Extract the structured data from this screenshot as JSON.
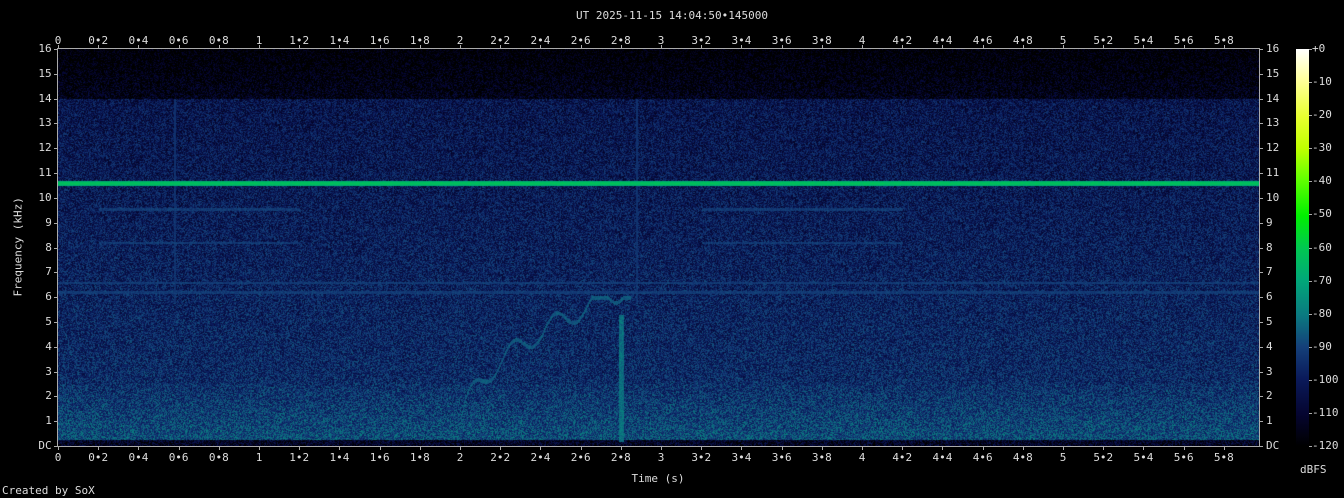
{
  "chart_data": {
    "type": "heatmap",
    "title": "UT 2025-11-15 14:04:50•145000",
    "xlabel": "Time (s)",
    "ylabel": "Frequency (kHz)",
    "xlim": [
      0,
      5.975
    ],
    "ylim": [
      0,
      16
    ],
    "x_ticks": [
      "0",
      "0•2",
      "0•4",
      "0•6",
      "0•8",
      "1",
      "1•2",
      "1•4",
      "1•6",
      "1•8",
      "2",
      "2•2",
      "2•4",
      "2•6",
      "2•8",
      "3",
      "3•2",
      "3•4",
      "3•6",
      "3•8",
      "4",
      "4•2",
      "4•4",
      "4•6",
      "4•8",
      "5",
      "5•2",
      "5•4",
      "5•6",
      "5•8"
    ],
    "y_ticks": [
      "DC",
      "1",
      "2",
      "3",
      "4",
      "5",
      "6",
      "7",
      "8",
      "9",
      "10",
      "11",
      "12",
      "13",
      "14",
      "15",
      "16"
    ],
    "colorbar": {
      "label": "dBFS",
      "ticks": [
        "+0",
        "-10",
        "-20",
        "-30",
        "-40",
        "-50",
        "-60",
        "-70",
        "-80",
        "-90",
        "-100",
        "-110",
        "-120"
      ],
      "range": [
        -120,
        0
      ]
    },
    "features": {
      "tone_khz": 10.6,
      "tone_dbfs": -62,
      "noise_floor_low_dbfs": -88,
      "noise_floor_high_dbfs": -115,
      "line_6_2khz_dbfs": -92,
      "transient_s": 2.8,
      "whistler_start_s": 2.0
    }
  },
  "footer": {
    "credit": "Created by SoX"
  }
}
